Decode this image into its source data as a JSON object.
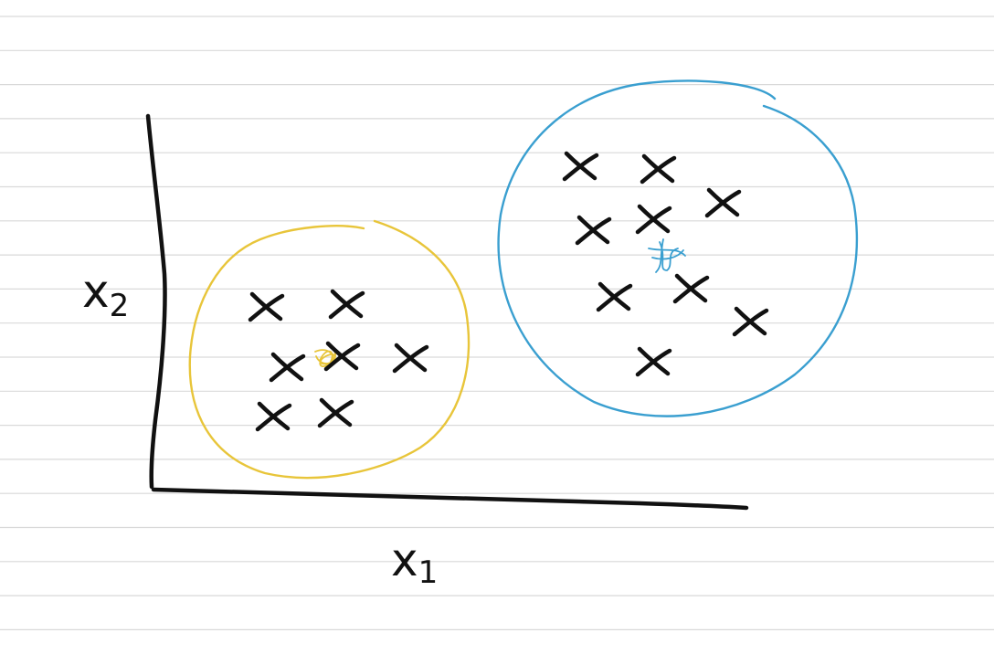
{
  "axes": {
    "x_label": "x",
    "x_subscript": "1",
    "y_label": "x",
    "y_subscript": "2"
  },
  "colors": {
    "ink": "#111111",
    "cluster_a": "#e8c53a",
    "cluster_b": "#3a9fd0",
    "ruled_lines": "#d9d9d9",
    "background": "#ffffff"
  },
  "clusters": [
    {
      "id": "yellow",
      "color": "#e8c53a"
    },
    {
      "id": "blue",
      "color": "#3a9fd0"
    }
  ]
}
